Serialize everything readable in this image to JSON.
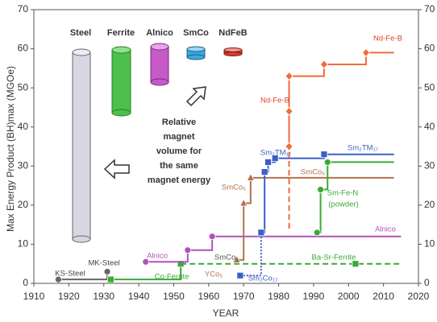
{
  "chart_data": {
    "type": "step",
    "xlabel": "YEAR",
    "ylabel": "Max Energy Product (BH)max (MGOe)",
    "xlim": [
      1910,
      2020
    ],
    "xticks": [
      1910,
      1920,
      1930,
      1940,
      1950,
      1960,
      1970,
      1980,
      1990,
      2000,
      2010,
      2020
    ],
    "ylim": [
      0,
      70
    ],
    "yticks": [
      0,
      10,
      20,
      30,
      40,
      50,
      60,
      70
    ],
    "y2lim": [
      0,
      70
    ],
    "y2ticks": [
      0,
      10,
      20,
      30,
      40,
      50,
      60,
      70
    ],
    "series": [
      {
        "color": "#666666",
        "marker": "circle",
        "style": "solid",
        "x": [
          1917,
          1931
        ],
        "values": [
          1,
          3
        ],
        "marked": [
          true,
          true
        ]
      },
      {
        "color": "#3aaa35",
        "marker": "square",
        "style": "solid",
        "x": [
          1932,
          1952
        ],
        "values": [
          1,
          5
        ],
        "marked": [
          true,
          true
        ]
      },
      {
        "color": "#3aaa35",
        "marker": "square",
        "style": "dashed",
        "x": [
          1952,
          2002,
          2015
        ],
        "values": [
          5,
          5,
          5
        ],
        "marked": [
          false,
          true,
          false
        ]
      },
      {
        "color": "#b44fbf",
        "marker": "circle",
        "style": "solid",
        "x": [
          1942,
          1954,
          1961,
          2015
        ],
        "values": [
          5.5,
          8.5,
          12,
          12
        ],
        "marked": [
          true,
          true,
          true,
          false
        ]
      },
      {
        "color": "#b5714a",
        "marker": "triangle",
        "style": "solid",
        "x": [
          1968,
          1970,
          1972,
          2013
        ],
        "values": [
          6,
          20.5,
          27,
          27
        ],
        "marked": [
          true,
          true,
          true,
          false
        ]
      },
      {
        "color": "#3a5fc8",
        "marker": "square",
        "style": "dotted",
        "x": [
          1969,
          1975
        ],
        "values": [
          2,
          13
        ],
        "marked": [
          true,
          false
        ]
      },
      {
        "color": "#3a5fc8",
        "marker": "square",
        "style": "solid",
        "x": [
          1975,
          1976,
          1977,
          1979,
          1993,
          2013
        ],
        "values": [
          13,
          28.5,
          31,
          32,
          33,
          33
        ],
        "marked": [
          true,
          true,
          true,
          true,
          true,
          false
        ]
      },
      {
        "color": "#3aaa35",
        "marker": "circle",
        "style": "solid",
        "x": [
          1991,
          1992,
          1994,
          2013
        ],
        "values": [
          13,
          24,
          31,
          31
        ],
        "marked": [
          true,
          true,
          true,
          false
        ]
      },
      {
        "color": "#f26b3a",
        "marker": "diamond",
        "style": "dashed",
        "x": [
          1983,
          1983
        ],
        "values": [
          14,
          35
        ],
        "marked": [
          false,
          false
        ]
      },
      {
        "color": "#f26b3a",
        "marker": "diamond",
        "style": "solid",
        "x": [
          1983,
          1983,
          1983,
          1993,
          2005,
          2013
        ],
        "values": [
          35,
          44,
          53,
          56,
          59,
          59
        ],
        "marked": [
          true,
          true,
          true,
          true,
          true,
          false
        ]
      }
    ],
    "annotations": [
      {
        "text": "KS-Steel",
        "color": "#444444"
      },
      {
        "text": "MK-Steel",
        "color": "#444444"
      },
      {
        "text": "Co-Ferrite",
        "color": "#3aaa35"
      },
      {
        "text": "Alnico",
        "color": "#b44fbf"
      },
      {
        "text": "Alnico",
        "color": "#b44fbf"
      },
      {
        "text": "SmCo₅",
        "color": "#555555"
      },
      {
        "text": "YCo₅",
        "color": "#b5714a"
      },
      {
        "text": "Sm₂Co₁₇",
        "color": "#3a5fc8"
      },
      {
        "text": "SmCo₅",
        "color": "#b5714a"
      },
      {
        "text": "Sm₂TM₁₇",
        "color": "#3a5fc8"
      },
      {
        "text": "Sm₂TM₁₇",
        "color": "#3a5fc8"
      },
      {
        "text": "SmCo₅",
        "color": "#b5714a"
      },
      {
        "text": "Sm-Fe-N",
        "color": "#3aaa35"
      },
      {
        "text": "(powder)",
        "color": "#3aaa35"
      },
      {
        "text": "Nd-Fe-B",
        "color": "#e0412a"
      },
      {
        "text": "Nd-Fe-B",
        "color": "#e0412a"
      },
      {
        "text": "Ba-Sr-Ferrite",
        "color": "#3aaa35"
      }
    ],
    "cylinder_labels": [
      "Steel",
      "Ferrite",
      "Alnico",
      "SmCo",
      "NdFeB"
    ],
    "volume_note": [
      "Relative",
      "magnet",
      "volume for",
      "the same",
      "magnet energy"
    ]
  }
}
